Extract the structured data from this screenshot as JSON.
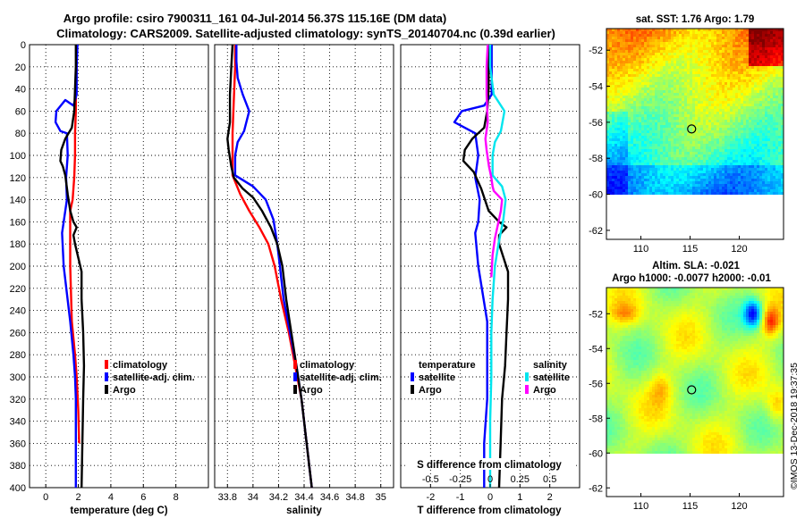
{
  "title_lines": [
    "Argo profile: csiro 7900311_161 04-Jul-2014 56.37S 115.16E (DM data)",
    "Climatology: CARS2009. Satellite-adjusted climatology: synTS_20140704.nc (0.39d earlier)"
  ],
  "colors": {
    "argo": "#000000",
    "climatology": "#ff0000",
    "satellite": "#0000ff",
    "salinity_satellite": "#00e5ee",
    "salinity_argo": "#ff00ff"
  },
  "chart_data": [
    {
      "type": "line",
      "id": "temperature",
      "xlabel": "temperature (deg C)",
      "ylabel": "",
      "xlim": [
        -1,
        10
      ],
      "ylim": [
        400,
        0
      ],
      "xticks": [
        0,
        2,
        4,
        6,
        8
      ],
      "xtick_labels": [
        "0",
        "2",
        "4",
        "6",
        "8"
      ],
      "yticks": [
        0,
        20,
        40,
        60,
        80,
        100,
        120,
        140,
        160,
        180,
        200,
        220,
        240,
        260,
        280,
        300,
        320,
        340,
        360,
        380,
        400
      ],
      "legend": [
        "climatology",
        "satellite-adj. clim.",
        "Argo"
      ],
      "series": [
        {
          "name": "climatology",
          "color": "#ff0000",
          "points": [
            [
              1.9,
              0
            ],
            [
              1.9,
              20
            ],
            [
              1.85,
              40
            ],
            [
              1.85,
              60
            ],
            [
              1.8,
              80
            ],
            [
              1.8,
              100
            ],
            [
              1.75,
              120
            ],
            [
              1.65,
              140
            ],
            [
              1.5,
              150
            ],
            [
              1.5,
              170
            ],
            [
              1.5,
              200
            ],
            [
              1.6,
              250
            ],
            [
              1.8,
              280
            ],
            [
              1.9,
              300
            ],
            [
              2.0,
              330
            ],
            [
              2.05,
              360
            ]
          ]
        },
        {
          "name": "satellite-adj. clim.",
          "color": "#0000ff",
          "points": [
            [
              1.95,
              0
            ],
            [
              1.9,
              20
            ],
            [
              1.9,
              45
            ],
            [
              1.7,
              55
            ],
            [
              1.2,
              50
            ],
            [
              0.65,
              60
            ],
            [
              0.6,
              70
            ],
            [
              0.9,
              78
            ],
            [
              1.3,
              80
            ],
            [
              1.35,
              100
            ],
            [
              1.25,
              120
            ],
            [
              1.3,
              140
            ],
            [
              1.1,
              160
            ],
            [
              1.0,
              170
            ],
            [
              1.1,
              200
            ],
            [
              1.5,
              250
            ],
            [
              1.7,
              280
            ],
            [
              1.8,
              300
            ],
            [
              1.85,
              320
            ],
            [
              1.85,
              360
            ],
            [
              1.85,
              400
            ]
          ]
        },
        {
          "name": "Argo",
          "color": "#000000",
          "points": [
            [
              1.85,
              0
            ],
            [
              1.85,
              20
            ],
            [
              1.8,
              40
            ],
            [
              1.75,
              60
            ],
            [
              1.6,
              75
            ],
            [
              1.2,
              85
            ],
            [
              0.95,
              95
            ],
            [
              0.9,
              105
            ],
            [
              1.05,
              110
            ],
            [
              1.2,
              118
            ],
            [
              1.35,
              135
            ],
            [
              1.5,
              150
            ],
            [
              1.7,
              160
            ],
            [
              1.9,
              165
            ],
            [
              1.7,
              172
            ],
            [
              1.8,
              180
            ],
            [
              2.2,
              205
            ],
            [
              2.2,
              230
            ],
            [
              2.3,
              260
            ],
            [
              2.35,
              290
            ],
            [
              2.3,
              320
            ],
            [
              2.25,
              360
            ],
            [
              2.2,
              400
            ]
          ]
        }
      ]
    },
    {
      "type": "line",
      "id": "salinity",
      "xlabel": "salinity",
      "xlim": [
        33.7,
        35.1
      ],
      "ylim": [
        400,
        0
      ],
      "xticks": [
        33.8,
        34.0,
        34.2,
        34.4,
        34.6,
        34.8,
        35.0
      ],
      "xtick_labels": [
        "33.8",
        "34",
        "34.2",
        "34.4",
        "34.6",
        "34.8",
        "35"
      ],
      "legend": [
        "climatology",
        "satellite-adj. clim.",
        "Argo"
      ],
      "series": [
        {
          "name": "climatology",
          "color": "#ff0000",
          "points": [
            [
              33.86,
              0
            ],
            [
              33.86,
              20
            ],
            [
              33.85,
              50
            ],
            [
              33.84,
              80
            ],
            [
              33.84,
              100
            ],
            [
              33.84,
              118
            ],
            [
              33.9,
              135
            ],
            [
              33.97,
              150
            ],
            [
              34.05,
              165
            ],
            [
              34.12,
              180
            ],
            [
              34.17,
              200
            ],
            [
              34.22,
              230
            ],
            [
              34.28,
              260
            ],
            [
              34.33,
              290
            ],
            [
              34.38,
              320
            ],
            [
              34.41,
              350
            ],
            [
              34.44,
              380
            ],
            [
              34.46,
              400
            ]
          ]
        },
        {
          "name": "satellite-adj. clim.",
          "color": "#0000ff",
          "points": [
            [
              33.87,
              0
            ],
            [
              33.87,
              15
            ],
            [
              33.88,
              30
            ],
            [
              33.92,
              45
            ],
            [
              33.97,
              60
            ],
            [
              33.93,
              78
            ],
            [
              33.88,
              88
            ],
            [
              33.86,
              100
            ],
            [
              33.86,
              118
            ],
            [
              34.0,
              128
            ],
            [
              34.1,
              140
            ],
            [
              34.16,
              158
            ],
            [
              34.19,
              180
            ],
            [
              34.21,
              200
            ],
            [
              34.24,
              230
            ],
            [
              34.29,
              260
            ],
            [
              34.34,
              290
            ],
            [
              34.38,
              320
            ],
            [
              34.41,
              350
            ],
            [
              34.44,
              380
            ],
            [
              34.46,
              400
            ]
          ]
        },
        {
          "name": "Argo",
          "color": "#000000",
          "points": [
            [
              33.84,
              0
            ],
            [
              33.83,
              20
            ],
            [
              33.82,
              45
            ],
            [
              33.82,
              70
            ],
            [
              33.8,
              85
            ],
            [
              33.81,
              95
            ],
            [
              33.83,
              110
            ],
            [
              33.85,
              120
            ],
            [
              33.92,
              130
            ],
            [
              34.0,
              138
            ],
            [
              34.07,
              150
            ],
            [
              34.14,
              165
            ],
            [
              34.19,
              180
            ],
            [
              34.23,
              200
            ],
            [
              34.26,
              230
            ],
            [
              34.3,
              260
            ],
            [
              34.34,
              290
            ],
            [
              34.38,
              320
            ],
            [
              34.41,
              350
            ],
            [
              34.44,
              380
            ],
            [
              34.46,
              400
            ]
          ]
        }
      ]
    },
    {
      "type": "line",
      "id": "difference",
      "xlabel": "T difference from climatology",
      "top_label": "S difference from climatology",
      "xlim": [
        -3,
        3
      ],
      "ylim": [
        400,
        0
      ],
      "xticks": [
        -2,
        -1,
        0,
        1,
        2
      ],
      "xtick_labels": [
        "-2",
        "-1",
        "0",
        "1",
        "2"
      ],
      "top_xticks": [
        -0.5,
        -0.25,
        0,
        0.25,
        0.5
      ],
      "top_xtick_labels": [
        "-0.5",
        "-0.25",
        "0",
        "0.25",
        "0.5"
      ],
      "s_scale": 0.25,
      "legend_temperature": {
        "heading": "temperature",
        "items": [
          "satellite",
          "Argo"
        ]
      },
      "legend_salinity": {
        "heading": "salinity",
        "items": [
          "satellite",
          "Argo"
        ]
      },
      "series": [
        {
          "name": "temperature satellite",
          "color": "#0000ff",
          "kind": "T",
          "points": [
            [
              0.05,
              0
            ],
            [
              0.05,
              20
            ],
            [
              0.05,
              45
            ],
            [
              -0.2,
              55
            ],
            [
              -0.95,
              60
            ],
            [
              -1.2,
              70
            ],
            [
              -0.5,
              80
            ],
            [
              -0.4,
              100
            ],
            [
              -0.5,
              120
            ],
            [
              -0.35,
              140
            ],
            [
              -0.4,
              160
            ],
            [
              -0.5,
              170
            ],
            [
              -0.4,
              200
            ],
            [
              -0.1,
              250
            ],
            [
              -0.1,
              280
            ],
            [
              -0.1,
              320
            ],
            [
              -0.2,
              360
            ],
            [
              -0.2,
              400
            ]
          ]
        },
        {
          "name": "temperature Argo",
          "color": "#000000",
          "kind": "T",
          "points": [
            [
              -0.05,
              0
            ],
            [
              -0.05,
              20
            ],
            [
              -0.05,
              40
            ],
            [
              -0.1,
              60
            ],
            [
              -0.2,
              75
            ],
            [
              -0.6,
              85
            ],
            [
              -0.85,
              95
            ],
            [
              -0.9,
              105
            ],
            [
              -0.55,
              115
            ],
            [
              -0.3,
              130
            ],
            [
              -0.05,
              150
            ],
            [
              0.3,
              160
            ],
            [
              0.55,
              165
            ],
            [
              0.3,
              172
            ],
            [
              0.3,
              180
            ],
            [
              0.6,
              205
            ],
            [
              0.6,
              230
            ],
            [
              0.55,
              260
            ],
            [
              0.5,
              290
            ],
            [
              0.4,
              320
            ],
            [
              0.35,
              360
            ],
            [
              0.3,
              400
            ]
          ]
        },
        {
          "name": "salinity satellite",
          "color": "#00e5ee",
          "kind": "S",
          "points": [
            [
              0.0,
              0
            ],
            [
              0.0,
              20
            ],
            [
              0.03,
              45
            ],
            [
              0.12,
              60
            ],
            [
              0.09,
              78
            ],
            [
              0.04,
              88
            ],
            [
              0.02,
              100
            ],
            [
              0.02,
              118
            ],
            [
              0.1,
              128
            ],
            [
              0.13,
              140
            ],
            [
              0.11,
              158
            ],
            [
              0.07,
              180
            ],
            [
              0.04,
              200
            ],
            [
              0.02,
              230
            ],
            [
              0.01,
              260
            ],
            [
              0.01,
              300
            ],
            [
              0.0,
              340
            ],
            [
              0.0,
              400
            ]
          ]
        },
        {
          "name": "salinity Argo",
          "color": "#ff00ff",
          "kind": "S",
          "points": [
            [
              -0.02,
              0
            ],
            [
              -0.03,
              20
            ],
            [
              -0.03,
              45
            ],
            [
              -0.02,
              70
            ],
            [
              -0.04,
              85
            ],
            [
              -0.03,
              95
            ],
            [
              -0.01,
              110
            ],
            [
              0.01,
              120
            ],
            [
              0.02,
              128
            ],
            [
              0.03,
              132
            ],
            [
              0.1,
              140
            ],
            [
              0.09,
              150
            ],
            [
              0.06,
              165
            ],
            [
              0.04,
              175
            ],
            [
              0.02,
              190
            ],
            [
              0.01,
              210
            ]
          ]
        }
      ]
    },
    {
      "type": "heatmap",
      "id": "sst_map",
      "title": "sat. SST: 1.76 Argo: 1.79",
      "lon_range": [
        106.5,
        124.5
      ],
      "lat_range": [
        -62.5,
        -50.8
      ],
      "xticks": [
        110,
        115,
        120
      ],
      "yticks": [
        -52,
        -54,
        -56,
        -58,
        -60,
        -62
      ],
      "data_lat_bottom": -60,
      "marker": {
        "lon": 115.16,
        "lat": -56.37
      }
    },
    {
      "type": "heatmap",
      "id": "sla_map",
      "title_lines": [
        "Altim. SLA: -0.021",
        "Argo h1000: -0.0077 h2000: -0.01"
      ],
      "lon_range": [
        106.5,
        124.5
      ],
      "lat_range": [
        -62.5,
        -50.5
      ],
      "xticks": [
        110,
        115,
        120
      ],
      "yticks": [
        -52,
        -54,
        -56,
        -58,
        -60,
        -62
      ],
      "data_lat_bottom": -60,
      "marker": {
        "lon": 115.16,
        "lat": -56.37
      }
    }
  ],
  "watermark": "©IMOS 13-Dec-2018 19:37:35"
}
